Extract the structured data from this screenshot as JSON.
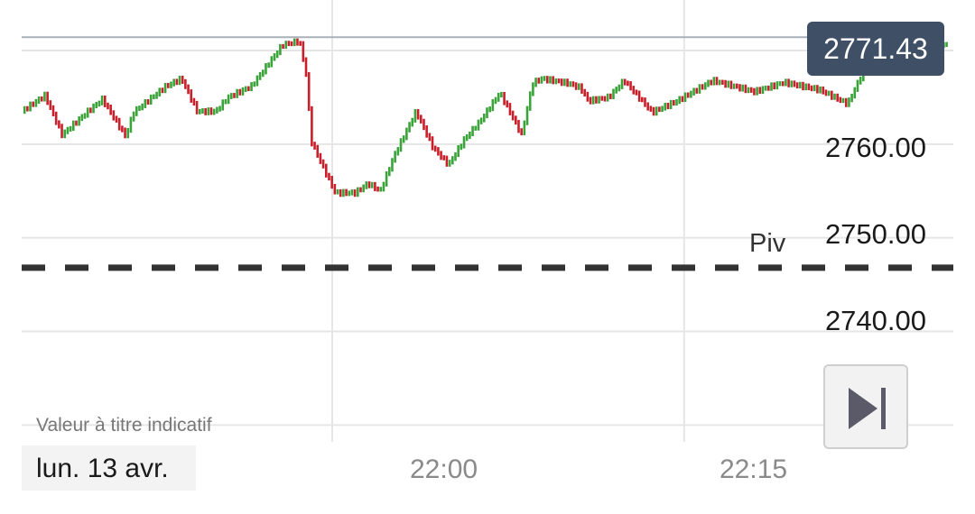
{
  "chart_data": {
    "type": "bar",
    "subtype": "ohlc-tick-bars",
    "date_label": "lun. 13 avr.",
    "note": "Valeur à titre indicatif",
    "current_price": "2771.43",
    "y_tick_labels": [
      "2760.00",
      "2750.00",
      "2740.00"
    ],
    "y_ticks": [
      2770,
      2760,
      2750,
      2740,
      2730
    ],
    "ylim": [
      2728.2,
      2775.4
    ],
    "x_tick_labels": [
      "22:00",
      "22:15"
    ],
    "x_start_minutes": 1305,
    "x_end_minutes": 1350,
    "x_tick_minutes": [
      1297,
      1320,
      1337
    ],
    "pivot": {
      "label": "Piv",
      "value": 2746.8
    },
    "current_price_value": 2771.43,
    "grid": true,
    "anchors": [
      [
        0,
        2763.5
      ],
      [
        1.5,
        2765.2
      ],
      [
        2.6,
        2761.0
      ],
      [
        4.2,
        2763.4
      ],
      [
        5.2,
        2764.8
      ],
      [
        6.7,
        2760.8
      ],
      [
        7.2,
        2763.4
      ],
      [
        9.3,
        2766.2
      ],
      [
        10.3,
        2767.0
      ],
      [
        11.3,
        2763.5
      ],
      [
        12.5,
        2763.5
      ],
      [
        13.3,
        2765.0
      ],
      [
        14.8,
        2766.2
      ],
      [
        16.8,
        2770.6
      ],
      [
        17.9,
        2771.0
      ],
      [
        18.4,
        2766.8
      ],
      [
        18.6,
        2760.5
      ],
      [
        19.4,
        2757.6
      ],
      [
        20.2,
        2754.8
      ],
      [
        21.5,
        2754.8
      ],
      [
        22.3,
        2755.8
      ],
      [
        23.1,
        2755.0
      ],
      [
        24.0,
        2758.8
      ],
      [
        25.4,
        2763.5
      ],
      [
        26.5,
        2759.6
      ],
      [
        27.5,
        2757.8
      ],
      [
        28.5,
        2760.5
      ],
      [
        29.5,
        2762.4
      ],
      [
        30.8,
        2765.5
      ],
      [
        32.2,
        2761.0
      ],
      [
        32.9,
        2766.5
      ],
      [
        33.5,
        2767.0
      ],
      [
        35.2,
        2766.5
      ],
      [
        36.0,
        2766.0
      ],
      [
        36.5,
        2764.6
      ],
      [
        37.8,
        2765.0
      ],
      [
        38.8,
        2766.8
      ],
      [
        40.6,
        2763.4
      ],
      [
        42.2,
        2764.6
      ],
      [
        44.5,
        2766.8
      ],
      [
        47.2,
        2765.6
      ],
      [
        49.1,
        2766.6
      ],
      [
        51.4,
        2765.8
      ],
      [
        53.2,
        2764.3
      ],
      [
        54.5,
        2768.8
      ],
      [
        55.7,
        2770.2
      ],
      [
        56.8,
        2769.4
      ],
      [
        58.0,
        2769.8
      ],
      [
        58.9,
        2770.2
      ],
      [
        59.6,
        2770.8
      ]
    ],
    "colors": {
      "up": "#3aa33a",
      "down": "#c8202a",
      "grid": "#e6e6e6",
      "price_line": "#a8b0b8",
      "pivot": "#333333",
      "price_tag": "#3f5066"
    }
  },
  "controls": {
    "skip_to_end_icon": "skip-to-end-icon"
  }
}
